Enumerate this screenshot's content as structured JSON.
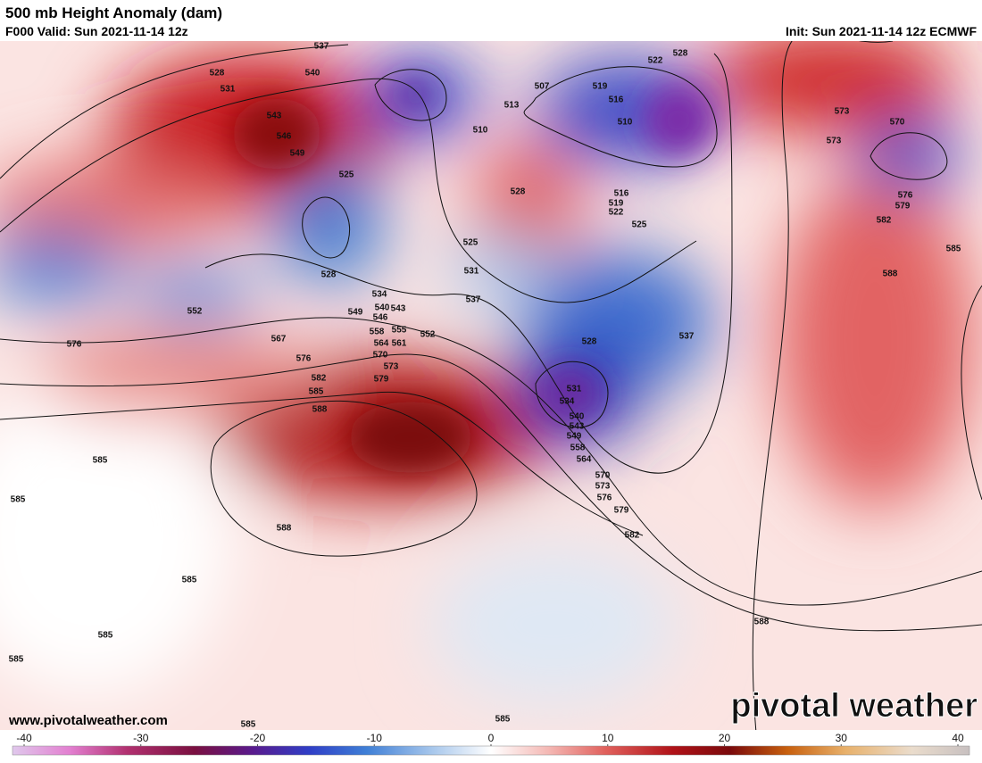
{
  "header": {
    "title": "500 mb Height Anomaly (dam)",
    "valid": "F000 Valid: Sun 2021-11-14 12z",
    "init": "Init: Sun 2021-11-14 12z ECMWF"
  },
  "footer": {
    "website": "www.pivotalweather.com",
    "logo": "pivotal weather"
  },
  "colorbar": {
    "ticks": [
      -40,
      -30,
      -20,
      -10,
      0,
      10,
      20,
      30,
      40
    ]
  },
  "contour_labels": [
    537,
    528,
    531,
    540,
    543,
    546,
    549,
    525,
    528,
    552,
    576,
    567,
    576,
    582,
    585,
    588,
    585,
    585,
    588,
    585,
    585,
    585,
    585,
    585,
    534,
    540,
    546,
    549,
    543,
    558,
    555,
    552,
    564,
    561,
    570,
    573,
    579,
    537,
    531,
    525,
    528,
    510,
    513,
    507,
    519,
    516,
    510,
    522,
    528,
    516,
    519,
    522,
    525,
    528,
    531,
    534,
    540,
    543,
    549,
    558,
    564,
    570,
    573,
    576,
    579,
    582,
    537,
    573,
    573,
    570,
    576,
    579,
    582,
    585,
    588,
    588
  ]
}
